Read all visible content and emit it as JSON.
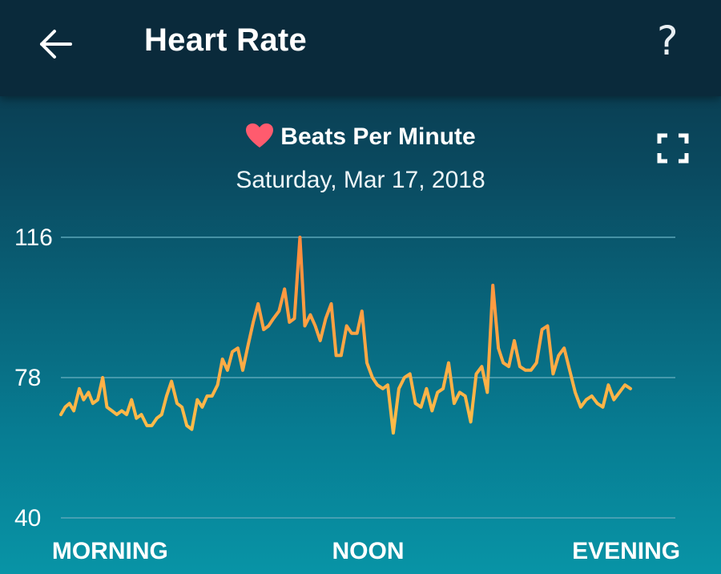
{
  "header": {
    "title": "Heart Rate",
    "back_icon": "arrow-left-icon",
    "help_icon": "question-mark-icon"
  },
  "chart_header": {
    "metric_label": "Beats Per Minute",
    "heart_icon": "heart-icon",
    "date": "Saturday, Mar 17, 2018",
    "expand_icon": "fullscreen-icon"
  },
  "colors": {
    "line_low": "#ffc24a",
    "line_high": "#ff8a3d",
    "heart": "#ff5b6e",
    "grid": "#5aa6b8"
  },
  "chart_data": {
    "type": "line",
    "title": "Beats Per Minute",
    "ylim": [
      40,
      116
    ],
    "yticks": [
      40,
      78,
      116
    ],
    "xticks": [
      {
        "label": "MORNING",
        "x": 0.08
      },
      {
        "label": "NOON",
        "x": 0.5
      },
      {
        "label": "EVENING",
        "x": 0.92
      }
    ],
    "xlim": [
      0,
      1
    ],
    "grid": true,
    "series": [
      {
        "values": [
          [
            0.0,
            68
          ],
          [
            0.007,
            70
          ],
          [
            0.014,
            71
          ],
          [
            0.021,
            69
          ],
          [
            0.03,
            75
          ],
          [
            0.037,
            72
          ],
          [
            0.045,
            74
          ],
          [
            0.052,
            71
          ],
          [
            0.06,
            72
          ],
          [
            0.068,
            78
          ],
          [
            0.075,
            70
          ],
          [
            0.083,
            69
          ],
          [
            0.091,
            68
          ],
          [
            0.099,
            69
          ],
          [
            0.107,
            68
          ],
          [
            0.115,
            72
          ],
          [
            0.123,
            67
          ],
          [
            0.131,
            68
          ],
          [
            0.14,
            65
          ],
          [
            0.148,
            65
          ],
          [
            0.156,
            67
          ],
          [
            0.164,
            68
          ],
          [
            0.172,
            73
          ],
          [
            0.18,
            77
          ],
          [
            0.189,
            71
          ],
          [
            0.197,
            70
          ],
          [
            0.205,
            65
          ],
          [
            0.213,
            64
          ],
          [
            0.222,
            72
          ],
          [
            0.23,
            70
          ],
          [
            0.238,
            73
          ],
          [
            0.246,
            73
          ],
          [
            0.255,
            76
          ],
          [
            0.263,
            83
          ],
          [
            0.271,
            80
          ],
          [
            0.279,
            85
          ],
          [
            0.288,
            86
          ],
          [
            0.296,
            80
          ],
          [
            0.305,
            87
          ],
          [
            0.313,
            93
          ],
          [
            0.321,
            98
          ],
          [
            0.33,
            91
          ],
          [
            0.338,
            92
          ],
          [
            0.346,
            94
          ],
          [
            0.355,
            96
          ],
          [
            0.364,
            102
          ],
          [
            0.372,
            93
          ],
          [
            0.38,
            94
          ],
          [
            0.389,
            116
          ],
          [
            0.397,
            92
          ],
          [
            0.406,
            95
          ],
          [
            0.414,
            92
          ],
          [
            0.422,
            88
          ],
          [
            0.431,
            94
          ],
          [
            0.44,
            98
          ],
          [
            0.448,
            84
          ],
          [
            0.456,
            84
          ],
          [
            0.465,
            92
          ],
          [
            0.473,
            90
          ],
          [
            0.482,
            90
          ],
          [
            0.49,
            96
          ],
          [
            0.498,
            82
          ],
          [
            0.507,
            78
          ],
          [
            0.515,
            76
          ],
          [
            0.524,
            75
          ],
          [
            0.532,
            76
          ],
          [
            0.541,
            63
          ],
          [
            0.55,
            75
          ],
          [
            0.559,
            78
          ],
          [
            0.568,
            79
          ],
          [
            0.577,
            71
          ],
          [
            0.586,
            70
          ],
          [
            0.595,
            75
          ],
          [
            0.604,
            69
          ],
          [
            0.613,
            74
          ],
          [
            0.622,
            75
          ],
          [
            0.631,
            82
          ],
          [
            0.64,
            71
          ],
          [
            0.649,
            74
          ],
          [
            0.658,
            73
          ],
          [
            0.667,
            66
          ],
          [
            0.676,
            79
          ],
          [
            0.685,
            81
          ],
          [
            0.694,
            74
          ],
          [
            0.703,
            103
          ],
          [
            0.712,
            86
          ],
          [
            0.72,
            82
          ],
          [
            0.729,
            81
          ],
          [
            0.738,
            88
          ],
          [
            0.747,
            81
          ],
          [
            0.756,
            80
          ],
          [
            0.765,
            80
          ],
          [
            0.774,
            82
          ],
          [
            0.783,
            91
          ],
          [
            0.792,
            92
          ],
          [
            0.801,
            79
          ],
          [
            0.81,
            84
          ],
          [
            0.819,
            86
          ],
          [
            0.828,
            80
          ],
          [
            0.837,
            74
          ],
          [
            0.846,
            70
          ],
          [
            0.855,
            72
          ],
          [
            0.864,
            73
          ],
          [
            0.873,
            71
          ],
          [
            0.882,
            70
          ],
          [
            0.891,
            76
          ],
          [
            0.9,
            72
          ],
          [
            0.909,
            74
          ],
          [
            0.918,
            76
          ],
          [
            0.927,
            75
          ]
        ]
      }
    ]
  }
}
